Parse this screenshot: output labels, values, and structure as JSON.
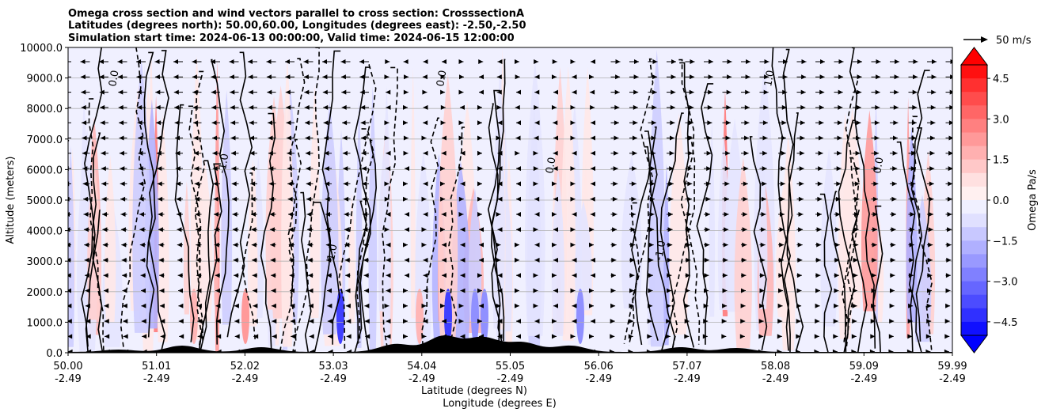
{
  "chart_data": {
    "type": "contour",
    "title": [
      "Omega cross section and wind vectors parallel to cross section: CrosssectionA",
      "Latitudes (degrees north): 50.00,60.00, Longitudes (degrees east): -2.50,-2.50",
      "Simulation start time: 2024-06-13 00:00:00, Valid time: 2024-06-15 12:00:00"
    ],
    "xlabel": "Latitude (degrees N)",
    "xlabel2": "Longitude (degrees E)",
    "ylabel": "Altitude (meters)",
    "x_ticks": [
      {
        "lat": "50.00",
        "lon": "-2.49"
      },
      {
        "lat": "51.01",
        "lon": "-2.49"
      },
      {
        "lat": "52.02",
        "lon": "-2.49"
      },
      {
        "lat": "53.03",
        "lon": "-2.49"
      },
      {
        "lat": "54.04",
        "lon": "-2.49"
      },
      {
        "lat": "55.05",
        "lon": "-2.49"
      },
      {
        "lat": "56.06",
        "lon": "-2.49"
      },
      {
        "lat": "57.07",
        "lon": "-2.49"
      },
      {
        "lat": "58.08",
        "lon": "-2.49"
      },
      {
        "lat": "59.09",
        "lon": "-2.49"
      },
      {
        "lat": "59.99",
        "lon": "-2.49"
      }
    ],
    "y_ticks": [
      "0.0",
      "1000.0",
      "2000.0",
      "3000.0",
      "4000.0",
      "5000.0",
      "6000.0",
      "7000.0",
      "8000.0",
      "9000.0",
      "10000.0"
    ],
    "xlim": [
      50.0,
      59.99
    ],
    "ylim": [
      0,
      10000
    ],
    "grid": "horizontal",
    "colorbar": {
      "label": "Omega Pa/s",
      "ticks": [
        "4.5",
        "3.0",
        "1.5",
        "0.0",
        "−1.5",
        "−3.0",
        "−4.5"
      ],
      "range": [
        -5,
        5
      ],
      "colormap": "bwr",
      "extend": "both"
    },
    "quiver_key": {
      "label": "50 m/s",
      "value": 50
    },
    "contour_labels": [
      "0.0",
      "-1.0",
      "1.0",
      "0.0",
      "0.0",
      "-1.0",
      "1.0",
      "0.0"
    ],
    "colors": {
      "positive": "#ff0000",
      "negative": "#0000ff",
      "terrain": "#000000"
    }
  }
}
